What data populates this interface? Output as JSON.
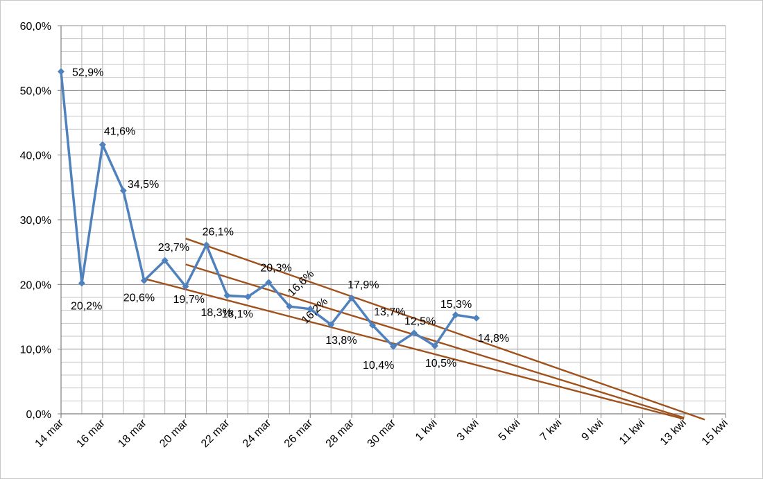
{
  "chart_data": {
    "type": "line",
    "title": "",
    "xlabel": "",
    "ylabel": "",
    "ylim": [
      0,
      60
    ],
    "y_ticks": [
      "0,0%",
      "10,0%",
      "20,0%",
      "30,0%",
      "40,0%",
      "50,0%",
      "60,0%"
    ],
    "x_tick_labels": [
      "14 mar",
      "16 mar",
      "18 mar",
      "20 mar",
      "22 mar",
      "24 mar",
      "26 mar",
      "28 mar",
      "30 mar",
      "1 kwi",
      "3 kwi",
      "5 kwi",
      "7 kwi",
      "9 kwi",
      "11 kwi",
      "13 kwi",
      "15 kwi"
    ],
    "grid": true,
    "legend": "none",
    "series": [
      {
        "color": "#4f81bd",
        "marker": "diamond",
        "points": [
          {
            "x": "14 mar",
            "y": 52.9,
            "label": "52,9%"
          },
          {
            "x": "15 mar",
            "y": 20.2,
            "label": "20,2%"
          },
          {
            "x": "16 mar",
            "y": 41.6,
            "label": "41,6%"
          },
          {
            "x": "17 mar",
            "y": 34.5,
            "label": "34,5%"
          },
          {
            "x": "18 mar",
            "y": 20.6,
            "label": "20,6%"
          },
          {
            "x": "19 mar",
            "y": 23.7,
            "label": "23,7%"
          },
          {
            "x": "20 mar",
            "y": 19.7,
            "label": "19,7%"
          },
          {
            "x": "21 mar",
            "y": 26.1,
            "label": "26,1%"
          },
          {
            "x": "22 mar",
            "y": 18.3,
            "label": "18,3%"
          },
          {
            "x": "23 mar",
            "y": 18.1,
            "label": "18,1%"
          },
          {
            "x": "24 mar",
            "y": 20.3,
            "label": "20,3%"
          },
          {
            "x": "25 mar",
            "y": 16.6,
            "label": "16,6%"
          },
          {
            "x": "26 mar",
            "y": 16.2,
            "label": "16,2%"
          },
          {
            "x": "27 mar",
            "y": 13.8,
            "label": "13,8%"
          },
          {
            "x": "28 mar",
            "y": 17.9,
            "label": "17,9%"
          },
          {
            "x": "29 mar",
            "y": 13.7,
            "label": "13,7%"
          },
          {
            "x": "30 mar",
            "y": 10.4,
            "label": "10,4%"
          },
          {
            "x": "31 mar",
            "y": 12.5,
            "label": "12,5%"
          },
          {
            "x": "1 kwi",
            "y": 10.5,
            "label": "10,5%"
          },
          {
            "x": "2 kwi",
            "y": 15.3,
            "label": "15,3%"
          },
          {
            "x": "3 kwi",
            "y": 14.8,
            "label": "14,8%"
          }
        ]
      }
    ],
    "trend_lines": [
      {
        "color": "#a0521c",
        "from": {
          "x": "18 mar",
          "y": 20.9
        },
        "to": {
          "x": "13 kwi",
          "y": -0.8
        }
      },
      {
        "color": "#a0521c",
        "from": {
          "x": "20 mar",
          "y": 23.1
        },
        "to": {
          "x": "13 kwi",
          "y": -0.6
        }
      },
      {
        "color": "#a0521c",
        "from": {
          "x": "20 mar",
          "y": 27.1
        },
        "to": {
          "x": "14 kwi",
          "y": -0.9
        }
      }
    ]
  }
}
